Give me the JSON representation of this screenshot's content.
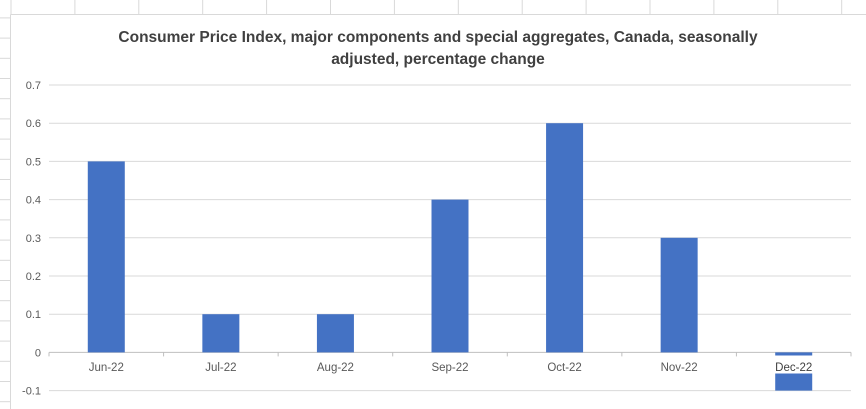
{
  "chart_data": {
    "type": "bar",
    "title": "Consumer Price Index, major components and special aggregates, Canada, seasonally adjusted, percentage change",
    "title_lines": [
      "Consumer Price Index, major components and special aggregates, Canada, seasonally",
      "adjusted, percentage change"
    ],
    "categories": [
      "Jun-22",
      "Jul-22",
      "Aug-22",
      "Sep-22",
      "Oct-22",
      "Nov-22",
      "Dec-22"
    ],
    "values": [
      0.5,
      0.1,
      0.1,
      0.4,
      0.6,
      0.3,
      -0.1
    ],
    "xlabel": "",
    "ylabel": "",
    "ylim": [
      -0.1,
      0.7
    ],
    "ytick_values": [
      0.7,
      0.6,
      0.5,
      0.4,
      0.3,
      0.2,
      0.1,
      0,
      -0.1
    ],
    "ytick_labels": [
      "0.7",
      "0.6",
      "0.5",
      "0.4",
      "0.3",
      "0.2",
      "0.1",
      "0",
      "-0.1"
    ],
    "grid": true,
    "legend_position": "none",
    "highlighted_category": "Dec-22",
    "context": "excel-worksheet-embedded-chart",
    "colors": {
      "bar": "#4472C4",
      "gridline": "#D9D9D9",
      "axis_line": "#BFBFBF",
      "chart_border": "#D9D9D9",
      "sheet_gridline": "#D9D9D9",
      "tick_label": "#595959",
      "title": "#404040",
      "highlight_label_text": "#404040",
      "highlight_label_bg": "#FFFFFF",
      "background": "#FFFFFF"
    }
  }
}
